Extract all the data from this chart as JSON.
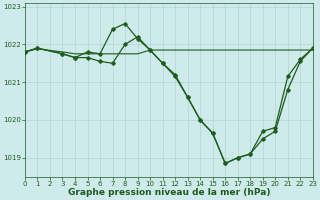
{
  "series_flat": {
    "x": [
      0,
      1,
      3,
      10,
      21,
      22,
      23
    ],
    "y": [
      1021.8,
      1021.9,
      1021.8,
      1021.85,
      1021.85,
      1021.85,
      1021.85
    ]
  },
  "series_A": {
    "x": [
      0,
      1,
      3,
      4,
      5,
      6,
      7,
      8,
      9,
      10,
      11,
      12,
      13,
      14,
      15,
      16,
      17,
      18,
      19,
      20,
      21,
      22,
      23
    ],
    "y": [
      1021.8,
      1021.9,
      1021.75,
      1021.65,
      1021.8,
      1021.75,
      1022.4,
      1022.55,
      1022.15,
      1021.85,
      1021.5,
      1021.15,
      1020.6,
      1020.0,
      1019.65,
      1018.85,
      1019.0,
      1019.1,
      1019.7,
      1019.8,
      1021.15,
      1021.6,
      1021.9
    ]
  },
  "series_B": {
    "x": [
      0,
      1,
      3,
      4,
      5,
      6,
      7,
      8,
      9,
      10,
      11,
      12,
      13,
      14,
      15,
      16,
      17,
      18,
      19,
      20,
      21,
      22,
      23
    ],
    "y": [
      1021.8,
      1021.9,
      1021.75,
      1021.65,
      1021.65,
      1021.55,
      1021.5,
      1022.0,
      1022.2,
      1021.85,
      1021.5,
      1021.2,
      1020.6,
      1020.0,
      1019.65,
      1018.85,
      1019.0,
      1019.1,
      1019.5,
      1019.7,
      1020.8,
      1021.55,
      1021.9
    ]
  },
  "series_flat_long": {
    "x": [
      0,
      1,
      3,
      4,
      5,
      6,
      7,
      8,
      9,
      10,
      11,
      12,
      13,
      14,
      15,
      16,
      17,
      18,
      19,
      20,
      21,
      22,
      23
    ],
    "y": [
      1021.8,
      1021.88,
      1021.8,
      1021.75,
      1021.75,
      1021.75,
      1021.75,
      1021.75,
      1021.75,
      1021.85,
      1021.85,
      1021.85,
      1021.85,
      1021.85,
      1021.85,
      1021.85,
      1021.85,
      1021.85,
      1021.85,
      1021.85,
      1021.85,
      1021.85,
      1021.85
    ]
  },
  "marker_pts_A": {
    "x": [
      0,
      1,
      3,
      4,
      5,
      6,
      7,
      8,
      9,
      10,
      11,
      12,
      13,
      14,
      15,
      16,
      17,
      18,
      19,
      20,
      21,
      22,
      23
    ],
    "y": [
      1021.8,
      1021.9,
      1021.75,
      1021.65,
      1021.8,
      1021.75,
      1022.4,
      1022.55,
      1022.15,
      1021.85,
      1021.5,
      1021.15,
      1020.6,
      1020.0,
      1019.65,
      1018.85,
      1019.0,
      1019.1,
      1019.7,
      1019.8,
      1021.15,
      1021.6,
      1021.9
    ]
  },
  "marker_pts_B": {
    "x": [
      0,
      1,
      3,
      4,
      5,
      6,
      7,
      8,
      9,
      10,
      11,
      12,
      13,
      14,
      15,
      16,
      17,
      18,
      19,
      20,
      21,
      22,
      23
    ],
    "y": [
      1021.8,
      1021.88,
      1021.75,
      1021.65,
      1021.65,
      1021.55,
      1021.5,
      1022.0,
      1022.2,
      1021.85,
      1021.5,
      1021.2,
      1020.6,
      1020.0,
      1019.65,
      1018.85,
      1019.0,
      1019.1,
      1019.5,
      1019.7,
      1020.8,
      1021.55,
      1021.9
    ]
  },
  "bg_color": "#ceeaea",
  "grid_color": "#aad0d0",
  "line_color": "#1e5c1e",
  "marker_color": "#1e5c1e",
  "xlim": [
    0,
    23
  ],
  "ylim": [
    1018.5,
    1023.1
  ],
  "yticks": [
    1019,
    1020,
    1021,
    1022,
    1023
  ],
  "xticks": [
    0,
    1,
    2,
    3,
    4,
    5,
    6,
    7,
    8,
    9,
    10,
    11,
    12,
    13,
    14,
    15,
    16,
    17,
    18,
    19,
    20,
    21,
    22,
    23
  ],
  "xlabel": "Graphe pression niveau de la mer (hPa)",
  "tick_fontsize": 5,
  "xlabel_fontsize": 6.5
}
